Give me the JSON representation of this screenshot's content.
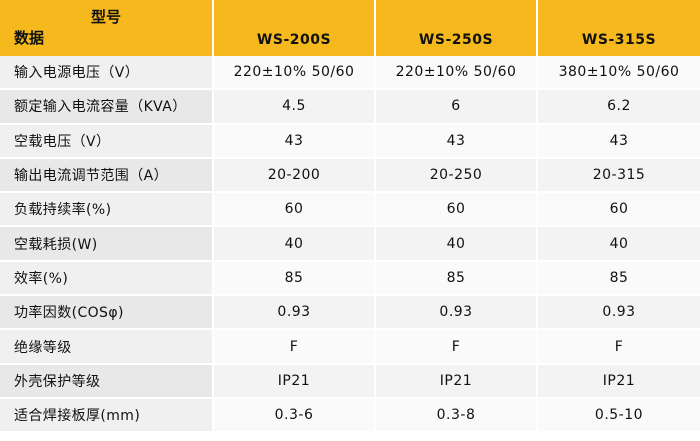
{
  "header": {
    "corner_top": "型号",
    "corner_bottom": "数据",
    "models": [
      "WS-200S",
      "WS-250S",
      "WS-315S"
    ]
  },
  "rows": [
    {
      "label": "输入电源电压（V）",
      "values": [
        "220±10% 50/60",
        "220±10% 50/60",
        "380±10% 50/60"
      ]
    },
    {
      "label": "额定输入电流容量（KVA）",
      "values": [
        "4.5",
        "6",
        "6.2"
      ]
    },
    {
      "label": "空载电压（V）",
      "values": [
        "43",
        "43",
        "43"
      ]
    },
    {
      "label": "输出电流调节范围（A）",
      "values": [
        "20-200",
        "20-250",
        "20-315"
      ]
    },
    {
      "label": "负载持续率(%)",
      "values": [
        "60",
        "60",
        "60"
      ]
    },
    {
      "label": "空载耗损(W)",
      "values": [
        "40",
        "40",
        "40"
      ]
    },
    {
      "label": "效率(%)",
      "values": [
        "85",
        "85",
        "85"
      ]
    },
    {
      "label": "功率因数(COSφ)",
      "values": [
        "0.93",
        "0.93",
        "0.93"
      ]
    },
    {
      "label": "绝缘等级",
      "values": [
        "F",
        "F",
        "F"
      ]
    },
    {
      "label": "外壳保护等级",
      "values": [
        "IP21",
        "IP21",
        "IP21"
      ]
    },
    {
      "label": "适合焊接板厚(mm)",
      "values": [
        "0.3-6",
        "0.3-8",
        "0.5-10"
      ]
    }
  ],
  "colors": {
    "header": "#f5b91d",
    "row_label": "#f0f0f0",
    "row_value": "#fafafa"
  }
}
